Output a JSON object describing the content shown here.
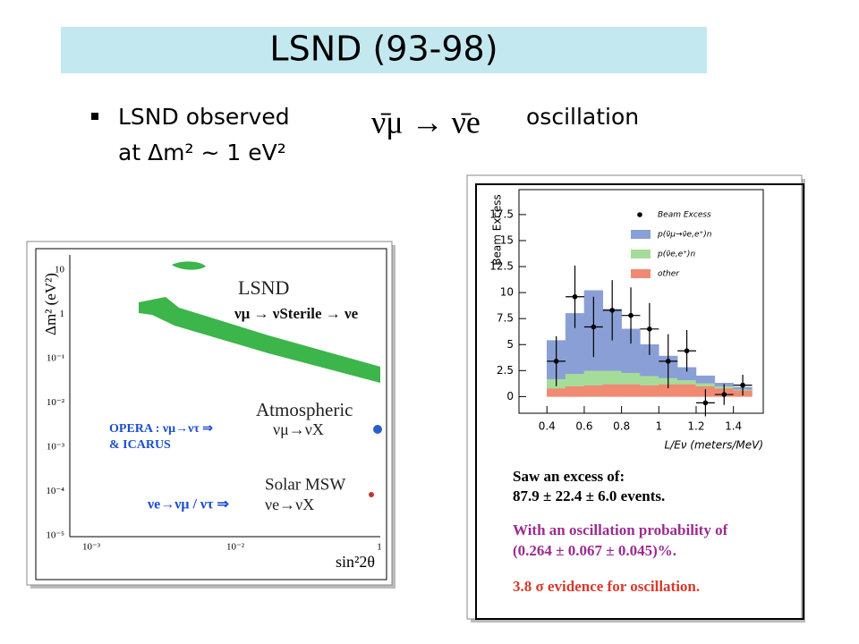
{
  "slide": {
    "title": "LSND (93-98)",
    "bullet": "LSND observed",
    "formula": "ν̄μ → ν̄e",
    "bullet_end": "oscillation",
    "bullet_line2": "at Δm² ~ 1 eV²"
  },
  "left_figure": {
    "y_label": "Δm² (eV²)",
    "x_label": "sin²2θ",
    "y_tick_labels": [
      "10",
      "1",
      "10⁻¹",
      "10⁻²",
      "10⁻³",
      "10⁻⁴",
      "10⁻⁵"
    ],
    "x_tick_labels": [
      "10⁻³",
      "10⁻²",
      "1"
    ],
    "labels": [
      "LSND",
      "νμ → νSterile → νe",
      "Atmospheric",
      "νμ→νX",
      "OPERA :  νμ→ντ ⇒",
      "& ICARUS",
      "Solar MSW",
      "νe→νμ / ντ ⇒",
      "νe→νX"
    ]
  },
  "chart_data": {
    "type": "histogram",
    "y_label": "Beam Excess",
    "x_label": "L/Eν (meters/MeV)",
    "bins": [
      0.4,
      0.5,
      0.6,
      0.7,
      0.8,
      0.9,
      1.0,
      1.1,
      1.2,
      1.3,
      1.4,
      1.5
    ],
    "xlim": [
      0.25,
      1.56
    ],
    "ylim": [
      -1.6,
      19.9
    ],
    "xticks": [
      0.4,
      0.6,
      0.8,
      1,
      1.2,
      1.4
    ],
    "yticks": [
      0,
      2.5,
      5,
      7.5,
      10,
      12.5,
      15,
      17.5
    ],
    "legend": "upper right",
    "series": [
      {
        "name": "other",
        "color": "#f08a72",
        "values": [
          0.8,
          1.0,
          1.1,
          1.2,
          1.2,
          1.1,
          1.2,
          1.2,
          1.0,
          0.8,
          0.6
        ]
      },
      {
        "name": "p(ν̄e,e⁺)n",
        "color": "#a6dc9a",
        "values": [
          0.9,
          1.2,
          1.4,
          1.3,
          1.1,
          0.9,
          0.6,
          0.4,
          0.3,
          0.2,
          0.1
        ]
      },
      {
        "name": "p(ν̄μ→ν̄e,e⁺)n",
        "color": "#8a9fd6",
        "values": [
          3.7,
          5.8,
          7.7,
          5.9,
          4.2,
          3.0,
          2.1,
          1.2,
          0.7,
          0.3,
          0.2
        ]
      },
      {
        "name": "Beam Excess",
        "color": "#000000",
        "values": [
          3.4,
          9.6,
          6.7,
          8.3,
          7.8,
          6.5,
          3.4,
          4.4,
          -0.6,
          0.2,
          1.1
        ],
        "errors": [
          2.4,
          3.0,
          2.9,
          2.9,
          2.7,
          2.5,
          2.6,
          2.0,
          1.3,
          1.0,
          1.0
        ]
      }
    ],
    "notes": [
      "Saw an excess of:",
      "87.9 ± 22.4 ± 6.0 events.",
      "With an oscillation probability of",
      "(0.264 ± 0.067 ± 0.045)%.",
      "3.8 σ evidence for oscillation."
    ]
  }
}
